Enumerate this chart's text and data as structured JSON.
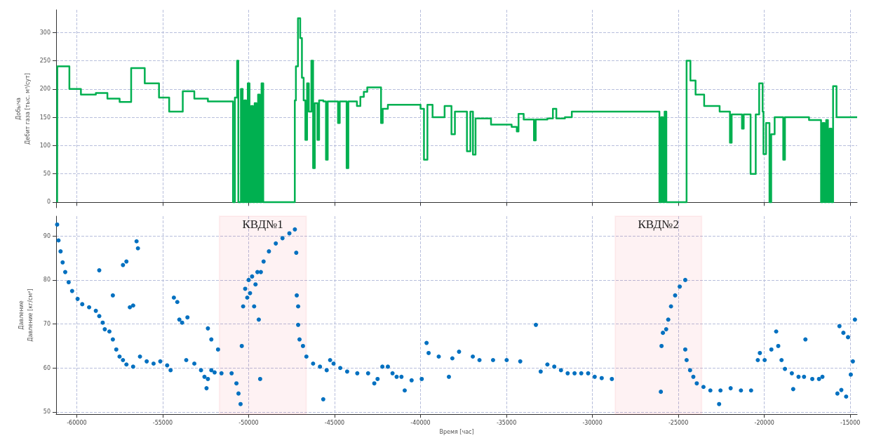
{
  "chart_data": [
    {
      "type": "step",
      "ylabel": "Добыча\nДебит газа [тыс. м³/сут]",
      "xlim": [
        -61200,
        -14600
      ],
      "xticks": [
        -60000,
        -55000,
        -50000,
        -45000,
        -40000,
        -35000,
        -30000,
        -25000,
        -20000,
        -15000
      ],
      "ylim": [
        -10,
        340
      ],
      "yticks": [
        0,
        50,
        100,
        150,
        200,
        250,
        300
      ],
      "tick_labels": "y",
      "grid": true,
      "marker": "none",
      "line_style": "solid",
      "series": [
        {
          "color": "#00b050",
          "x": [
            -61140,
            -61130,
            -60428,
            -59757,
            -58888,
            -58216,
            -57505,
            -56834,
            -56044,
            -55214,
            -54622,
            -53832,
            -53160,
            -52370,
            -50909,
            -50800,
            -50670,
            -50600,
            -50450,
            -50350,
            -50250,
            -50150,
            -50050,
            -49950,
            -49850,
            -49750,
            -49650,
            -49550,
            -49450,
            -49350,
            -49250,
            -49150,
            -47314,
            -47250,
            -47130,
            -47000,
            -46900,
            -46800,
            -46700,
            -46600,
            -46500,
            -46350,
            -46250,
            -46150,
            -46000,
            -45900,
            -45655,
            -45500,
            -45400,
            -44800,
            -44700,
            -44300,
            -44200,
            -43700,
            -43500,
            -43300,
            -43100,
            -42298,
            -42200,
            -41900,
            -40000,
            -39800,
            -39600,
            -39300,
            -38600,
            -38200,
            -38000,
            -37300,
            -37100,
            -36950,
            -36800,
            -35900,
            -34700,
            -34400,
            -34300,
            -34000,
            -33400,
            -33300,
            -32620,
            -32300,
            -32100,
            -31600,
            -31200,
            -26103,
            -26000,
            -25900,
            -25800,
            -25700,
            -24523,
            -24300,
            -24000,
            -23500,
            -22600,
            -22000,
            -21900,
            -21300,
            -21200,
            -20800,
            -20500,
            -20300,
            -20100,
            -20050,
            -19900,
            -19700,
            -19600,
            -19400,
            -18900,
            -18800,
            -17400,
            -16700,
            -16600,
            -16500,
            -16400,
            -16300,
            -16200,
            -16100,
            -16000,
            -15800,
            -14600
          ],
          "values": [
            0,
            240,
            200,
            190,
            193,
            183,
            177,
            237,
            210,
            185,
            160,
            196,
            183,
            178,
            0,
            185,
            250,
            0,
            200,
            0,
            180,
            0,
            210,
            0,
            170,
            0,
            175,
            0,
            190,
            0,
            210,
            0,
            180,
            240,
            325,
            290,
            220,
            180,
            110,
            210,
            160,
            250,
            60,
            175,
            110,
            180,
            178,
            75,
            178,
            140,
            178,
            60,
            178,
            170,
            186,
            195,
            203,
            140,
            165,
            172,
            165,
            75,
            172,
            150,
            170,
            120,
            160,
            90,
            160,
            84,
            148,
            137,
            133,
            125,
            156,
            146,
            109,
            146,
            148,
            165,
            148,
            150,
            160,
            0,
            150,
            0,
            160,
            0,
            250,
            215,
            190,
            170,
            160,
            105,
            155,
            130,
            155,
            50,
            155,
            210,
            160,
            85,
            140,
            0,
            120,
            150,
            75,
            150,
            145,
            0,
            140,
            0,
            145,
            0,
            130,
            0,
            205,
            150,
            150
          ]
        }
      ]
    },
    {
      "type": "scatter",
      "ylabel": "Давление\nДавление [кг/см²]",
      "xlabel": "Время [час]",
      "xlim": [
        -61200,
        -14600
      ],
      "xticks": [
        -60000,
        -55000,
        -50000,
        -45000,
        -40000,
        -35000,
        -30000,
        -25000,
        -20000,
        -15000
      ],
      "ylim": [
        49.5,
        94.5
      ],
      "yticks": [
        50,
        60,
        70,
        80,
        90
      ],
      "grid": true,
      "marker": "circle",
      "bands": [
        {
          "axis": "x",
          "from": -51700,
          "to": -46650,
          "label": "КВД№1",
          "color": "#e8262b"
        },
        {
          "axis": "x",
          "from": -28670,
          "to": -23650,
          "label": "КВД№2",
          "color": "#e8262b"
        }
      ],
      "series": [
        {
          "color": "#0070c0",
          "x": [
            -61140,
            -61060,
            -60940,
            -60820,
            -60670,
            -60470,
            -60270,
            -59950,
            -59680,
            -59280,
            -58890,
            -58690,
            -58490,
            -58370,
            -58100,
            -57900,
            -57700,
            -57510,
            -57310,
            -57110,
            -56720,
            -56320,
            -55930,
            -55530,
            -55140,
            -54740,
            -54540,
            -54350,
            -54150,
            -54030,
            -53870,
            -53630,
            -53160,
            -52770,
            -52570,
            -52450,
            -52370,
            -52170,
            -51980,
            -51580,
            -50990,
            -50710,
            -58690,
            -57310,
            -57110,
            -56520,
            -56440,
            -56910,
            -56720,
            -57900,
            -53560,
            -52370,
            -52170,
            -51780,
            -50590,
            -50470,
            -50400,
            -50320,
            -50200,
            -50080,
            -50000,
            -49920,
            -49800,
            -49680,
            -49600,
            -49490,
            -49410,
            -49330,
            -49290,
            -49130,
            -48820,
            -48420,
            -48030,
            -47630,
            -47310,
            -47230,
            -47200,
            -47120,
            -47120,
            -47040,
            -46840,
            -46640,
            -46250,
            -45850,
            -45460,
            -45260,
            -45060,
            -44670,
            -44270,
            -43680,
            -43050,
            -45660,
            -42690,
            -42500,
            -42220,
            -41900,
            -41630,
            -41390,
            -41110,
            -40520,
            -39930,
            -40920,
            -39650,
            -39530,
            -38940,
            -38150,
            -38350,
            -37760,
            -36960,
            -36570,
            -35780,
            -34990,
            -34200,
            -33290,
            -33010,
            -32620,
            -32220,
            -31830,
            -31440,
            -31040,
            -30650,
            -30250,
            -29870,
            -29460,
            -28870,
            -26020,
            -25980,
            -25900,
            -25710,
            -25590,
            -25430,
            -25190,
            -24920,
            -24600,
            -24600,
            -24520,
            -24320,
            -24130,
            -23930,
            -23540,
            -23140,
            -22550,
            -21960,
            -21360,
            -20770,
            -22630,
            -20380,
            -20260,
            -19980,
            -19590,
            -19310,
            -19190,
            -19000,
            -18800,
            -18400,
            -18010,
            -17690,
            -17610,
            -17210,
            -16820,
            -16620,
            -18320,
            -15750,
            -15630,
            -15520,
            -15400,
            -15240,
            -15130,
            -14970,
            -14850,
            -14730
          ],
          "values": [
            92.6,
            89,
            86.5,
            84,
            81.8,
            79.5,
            77.5,
            75.7,
            74.5,
            73.8,
            73,
            71.8,
            70.3,
            68.8,
            68.3,
            66.5,
            64.2,
            62.6,
            61.8,
            60.8,
            60.3,
            62.6,
            61.5,
            61,
            61.5,
            60.6,
            59.5,
            76,
            75,
            71,
            70.3,
            61.8,
            61,
            59.5,
            58,
            55.4,
            57.5,
            59.5,
            59,
            58.8,
            58.8,
            56.5,
            82.2,
            83.4,
            84.2,
            88.8,
            87.2,
            73.8,
            74.2,
            76.5,
            71.5,
            69,
            66.5,
            64.2,
            54.2,
            51.8,
            65,
            74,
            78,
            76,
            80,
            77,
            80.8,
            74,
            79,
            81.8,
            71,
            57.5,
            81.8,
            84.2,
            86.5,
            88.3,
            89.5,
            90.6,
            91.5,
            86.2,
            76.5,
            74,
            69.8,
            66.5,
            65,
            62.6,
            61,
            60.3,
            59.5,
            61.8,
            61,
            60,
            59.2,
            58.8,
            58.8,
            52.9,
            56.5,
            57.5,
            60.3,
            60.3,
            58.8,
            58,
            58,
            57.2,
            57.5,
            54.9,
            65.7,
            63.4,
            62.6,
            62.2,
            58,
            63.7,
            62.6,
            61.8,
            61.8,
            61.8,
            61.5,
            69.8,
            59.2,
            60.8,
            60.3,
            59.5,
            58.8,
            58.8,
            58.8,
            58.8,
            58,
            57.7,
            57.5,
            54.6,
            65,
            68,
            68.8,
            71,
            74,
            76.5,
            78.5,
            80,
            64.2,
            61.8,
            59.5,
            58,
            56.5,
            55.7,
            54.9,
            54.9,
            55.4,
            54.9,
            54.9,
            51.8,
            61.8,
            63.4,
            61.8,
            64.2,
            68.3,
            65,
            61.8,
            59.8,
            58.8,
            58,
            58,
            66.5,
            57.5,
            57.5,
            58,
            55.2,
            54.2,
            69.5,
            55,
            68,
            53.5,
            67,
            58.5,
            61.5,
            71
          ]
        }
      ]
    }
  ]
}
